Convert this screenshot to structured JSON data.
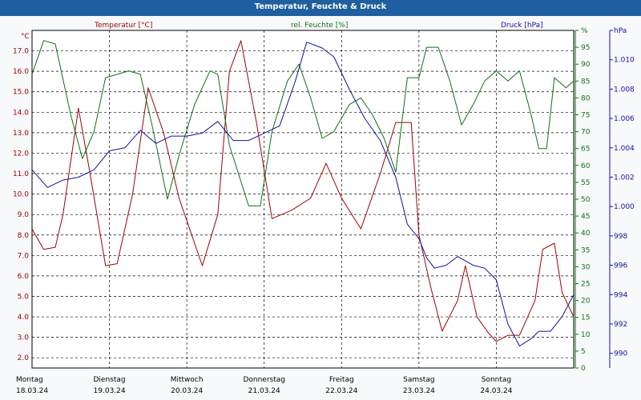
{
  "window": {
    "title": "Temperatur, Feuchte & Druck"
  },
  "colors": {
    "temperature": "#a00000",
    "humidity": "#107010",
    "pressure": "#1010a0",
    "grid": "#000000"
  },
  "chart_data": {
    "type": "line",
    "title": "Temperatur, Feuchte & Druck",
    "x_range": [
      0,
      7
    ],
    "x_ticks": [
      {
        "day": "Montag",
        "date": "18.03.24"
      },
      {
        "day": "Dienstag",
        "date": "19.03.24"
      },
      {
        "day": "Mittwoch",
        "date": "20.03.24"
      },
      {
        "day": "Donnerstag",
        "date": "21.03.24"
      },
      {
        "day": "Freitag",
        "date": "22.03.24"
      },
      {
        "day": "Samstag",
        "date": "23.03.24"
      },
      {
        "day": "Sonntag",
        "date": "24.03.24"
      }
    ],
    "axes": {
      "temperature": {
        "label": "Temperatur [°C]",
        "unit": "°C",
        "range": [
          1.5,
          18.0
        ],
        "ticks": [
          "2.0",
          "3.0",
          "4.0",
          "5.0",
          "6.0",
          "7.0",
          "8.0",
          "9.0",
          "10.0",
          "11.0",
          "12.0",
          "13.0",
          "14.0",
          "15.0",
          "16.0",
          "17.0"
        ]
      },
      "humidity": {
        "label": "rel. Feuchte [%]",
        "unit": "%",
        "range": [
          0,
          100
        ],
        "ticks": [
          "0",
          "5",
          "10",
          "15",
          "20",
          "25",
          "30",
          "35",
          "40",
          "45",
          "50",
          "55",
          "60",
          "65",
          "70",
          "75",
          "80",
          "85",
          "90",
          "95",
          "%"
        ]
      },
      "pressure": {
        "label": "Druck [hPa]",
        "unit": "hPa",
        "range": [
          989,
          1012
        ],
        "ticks": [
          "990",
          "992",
          "994",
          "996",
          "998",
          "1.000",
          "1.002",
          "1.004",
          "1.006",
          "1.008",
          "1.010",
          "hPa"
        ]
      }
    },
    "series": [
      {
        "name": "Temperatur",
        "axis": "temperature",
        "points": [
          [
            0,
            8.3
          ],
          [
            0.15,
            7.3
          ],
          [
            0.3,
            7.4
          ],
          [
            0.4,
            9.0
          ],
          [
            0.6,
            14.2
          ],
          [
            0.75,
            11.0
          ],
          [
            0.95,
            6.5
          ],
          [
            1.1,
            6.6
          ],
          [
            1.3,
            10.0
          ],
          [
            1.5,
            15.2
          ],
          [
            1.7,
            13.0
          ],
          [
            1.9,
            9.8
          ],
          [
            2.2,
            6.5
          ],
          [
            2.4,
            9.0
          ],
          [
            2.55,
            16.0
          ],
          [
            2.7,
            17.5
          ],
          [
            2.9,
            13.5
          ],
          [
            3.1,
            8.8
          ],
          [
            3.35,
            9.2
          ],
          [
            3.6,
            9.8
          ],
          [
            3.8,
            11.5
          ],
          [
            4.0,
            9.8
          ],
          [
            4.25,
            8.3
          ],
          [
            4.5,
            11.0
          ],
          [
            4.7,
            13.5
          ],
          [
            4.9,
            13.5
          ],
          [
            5.0,
            8.0
          ],
          [
            5.15,
            5.5
          ],
          [
            5.3,
            3.3
          ],
          [
            5.5,
            4.8
          ],
          [
            5.6,
            6.5
          ],
          [
            5.75,
            4.0
          ],
          [
            5.9,
            3.2
          ],
          [
            6.0,
            2.8
          ],
          [
            6.15,
            3.1
          ],
          [
            6.3,
            3.1
          ],
          [
            6.5,
            4.8
          ],
          [
            6.6,
            7.3
          ],
          [
            6.75,
            7.6
          ],
          [
            6.85,
            5.2
          ],
          [
            7.0,
            4.0
          ]
        ]
      },
      {
        "name": "rel. Feuchte",
        "axis": "humidity",
        "points": [
          [
            0,
            87
          ],
          [
            0.15,
            97
          ],
          [
            0.3,
            96
          ],
          [
            0.5,
            75
          ],
          [
            0.65,
            62
          ],
          [
            0.8,
            70
          ],
          [
            0.95,
            86
          ],
          [
            1.1,
            87
          ],
          [
            1.25,
            88
          ],
          [
            1.4,
            87
          ],
          [
            1.55,
            72
          ],
          [
            1.75,
            50
          ],
          [
            1.9,
            63
          ],
          [
            2.1,
            78
          ],
          [
            2.3,
            88
          ],
          [
            2.4,
            87
          ],
          [
            2.55,
            66
          ],
          [
            2.8,
            48
          ],
          [
            2.95,
            48
          ],
          [
            3.1,
            70
          ],
          [
            3.3,
            85
          ],
          [
            3.45,
            90
          ],
          [
            3.6,
            80
          ],
          [
            3.75,
            68
          ],
          [
            3.9,
            70
          ],
          [
            4.1,
            78
          ],
          [
            4.25,
            80
          ],
          [
            4.4,
            75
          ],
          [
            4.55,
            68
          ],
          [
            4.7,
            58
          ],
          [
            4.85,
            86
          ],
          [
            5.0,
            86
          ],
          [
            5.1,
            95
          ],
          [
            5.25,
            95
          ],
          [
            5.4,
            85
          ],
          [
            5.55,
            72
          ],
          [
            5.7,
            78
          ],
          [
            5.85,
            85
          ],
          [
            6.0,
            88
          ],
          [
            6.15,
            85
          ],
          [
            6.3,
            88
          ],
          [
            6.45,
            75
          ],
          [
            6.55,
            65
          ],
          [
            6.65,
            65
          ],
          [
            6.75,
            86
          ],
          [
            6.9,
            83
          ],
          [
            7.0,
            85
          ]
        ]
      },
      {
        "name": "Druck",
        "axis": "pressure",
        "points": [
          [
            0,
            1002.5
          ],
          [
            0.2,
            1001.3
          ],
          [
            0.4,
            1001.8
          ],
          [
            0.6,
            1002.0
          ],
          [
            0.8,
            1002.5
          ],
          [
            1.0,
            1003.8
          ],
          [
            1.2,
            1004.0
          ],
          [
            1.4,
            1005.2
          ],
          [
            1.6,
            1004.3
          ],
          [
            1.8,
            1004.8
          ],
          [
            2.0,
            1004.8
          ],
          [
            2.2,
            1005.0
          ],
          [
            2.4,
            1005.8
          ],
          [
            2.6,
            1004.5
          ],
          [
            2.8,
            1004.5
          ],
          [
            3.0,
            1005.0
          ],
          [
            3.2,
            1005.5
          ],
          [
            3.4,
            1008.5
          ],
          [
            3.55,
            1011.2
          ],
          [
            3.75,
            1010.8
          ],
          [
            3.9,
            1010.2
          ],
          [
            4.1,
            1008.0
          ],
          [
            4.3,
            1006.0
          ],
          [
            4.5,
            1004.5
          ],
          [
            4.7,
            1002.0
          ],
          [
            4.85,
            998.8
          ],
          [
            5.0,
            997.8
          ],
          [
            5.1,
            996.5
          ],
          [
            5.2,
            995.8
          ],
          [
            5.35,
            996.0
          ],
          [
            5.5,
            996.6
          ],
          [
            5.7,
            996.0
          ],
          [
            5.85,
            995.8
          ],
          [
            6.0,
            995.0
          ],
          [
            6.15,
            992.0
          ],
          [
            6.3,
            990.5
          ],
          [
            6.45,
            991.0
          ],
          [
            6.55,
            991.5
          ],
          [
            6.7,
            991.5
          ],
          [
            6.85,
            992.5
          ],
          [
            7.0,
            994.0
          ]
        ]
      }
    ]
  }
}
